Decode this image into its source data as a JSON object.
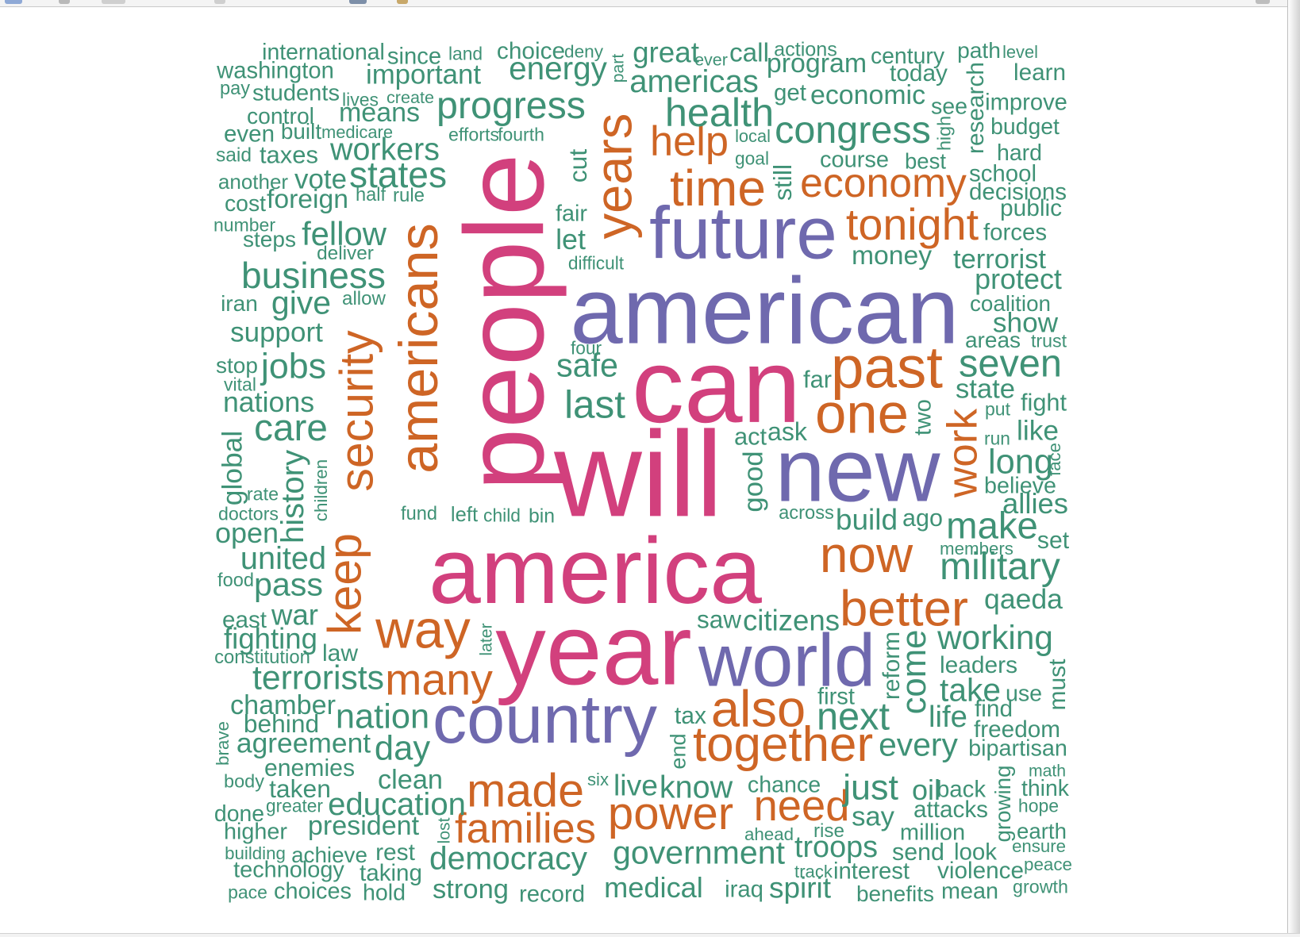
{
  "palette": {
    "pink": "#d2407d",
    "purple": "#6f69ae",
    "orange": "#ce6525",
    "green": "#3f9276"
  },
  "words": [
    {
      "text": "america",
      "c": "pink",
      "r": 0
    },
    {
      "text": "people",
      "c": "pink",
      "r": 1
    },
    {
      "text": "will",
      "c": "pink",
      "r": 0
    },
    {
      "text": "year",
      "c": "pink",
      "r": 0
    },
    {
      "text": "can",
      "c": "pink",
      "r": 0
    },
    {
      "text": "american",
      "c": "purple",
      "r": 0
    },
    {
      "text": "future",
      "c": "purple",
      "r": 0
    },
    {
      "text": "new",
      "c": "purple",
      "r": 0
    },
    {
      "text": "world",
      "c": "purple",
      "r": 0
    },
    {
      "text": "country",
      "c": "purple",
      "r": 0
    },
    {
      "text": "americans",
      "c": "orange",
      "r": 1
    },
    {
      "text": "years",
      "c": "orange",
      "r": 1
    },
    {
      "text": "security",
      "c": "orange",
      "r": 1
    },
    {
      "text": "keep",
      "c": "orange",
      "r": 1
    },
    {
      "text": "work",
      "c": "orange",
      "r": 1
    },
    {
      "text": "past",
      "c": "orange",
      "r": 0
    },
    {
      "text": "now",
      "c": "orange",
      "r": 0
    },
    {
      "text": "one",
      "c": "orange",
      "r": 0
    },
    {
      "text": "better",
      "c": "orange",
      "r": 0
    },
    {
      "text": "also",
      "c": "orange",
      "r": 0
    },
    {
      "text": "together",
      "c": "orange",
      "r": 0
    },
    {
      "text": "way",
      "c": "orange",
      "r": 0
    },
    {
      "text": "many",
      "c": "orange",
      "r": 0
    },
    {
      "text": "made",
      "c": "orange",
      "r": 0
    },
    {
      "text": "families",
      "c": "orange",
      "r": 0
    },
    {
      "text": "power",
      "c": "orange",
      "r": 0
    },
    {
      "text": "need",
      "c": "orange",
      "r": 0
    },
    {
      "text": "time",
      "c": "orange",
      "r": 0
    },
    {
      "text": "economy",
      "c": "orange",
      "r": 0
    },
    {
      "text": "tonight",
      "c": "orange",
      "r": 0
    },
    {
      "text": "help",
      "c": "orange",
      "r": 0
    },
    {
      "text": "health",
      "c": "green",
      "r": 0
    },
    {
      "text": "congress",
      "c": "green",
      "r": 0
    },
    {
      "text": "progress",
      "c": "green",
      "r": 0
    },
    {
      "text": "energy",
      "c": "green",
      "r": 0
    },
    {
      "text": "americas",
      "c": "green",
      "r": 0
    },
    {
      "text": "international",
      "c": "green",
      "r": 0
    },
    {
      "text": "washington",
      "c": "green",
      "r": 0
    },
    {
      "text": "since",
      "c": "green",
      "r": 0
    },
    {
      "text": "land",
      "c": "green",
      "r": 0
    },
    {
      "text": "choice",
      "c": "green",
      "r": 0
    },
    {
      "text": "deny",
      "c": "green",
      "r": 0
    },
    {
      "text": "part",
      "c": "green",
      "r": 1
    },
    {
      "text": "great",
      "c": "green",
      "r": 0
    },
    {
      "text": "ever",
      "c": "green",
      "r": 0
    },
    {
      "text": "call",
      "c": "green",
      "r": 0
    },
    {
      "text": "actions",
      "c": "green",
      "r": 0
    },
    {
      "text": "program",
      "c": "green",
      "r": 0
    },
    {
      "text": "century",
      "c": "green",
      "r": 0
    },
    {
      "text": "path",
      "c": "green",
      "r": 0
    },
    {
      "text": "level",
      "c": "green",
      "r": 0
    },
    {
      "text": "important",
      "c": "green",
      "r": 0
    },
    {
      "text": "today",
      "c": "green",
      "r": 0
    },
    {
      "text": "learn",
      "c": "green",
      "r": 0
    },
    {
      "text": "research",
      "c": "green",
      "r": 1
    },
    {
      "text": "pay",
      "c": "green",
      "r": 0
    },
    {
      "text": "students",
      "c": "green",
      "r": 0
    },
    {
      "text": "lives",
      "c": "green",
      "r": 0
    },
    {
      "text": "create",
      "c": "green",
      "r": 0
    },
    {
      "text": "get",
      "c": "green",
      "r": 0
    },
    {
      "text": "economic",
      "c": "green",
      "r": 0
    },
    {
      "text": "see",
      "c": "green",
      "r": 0
    },
    {
      "text": "improve",
      "c": "green",
      "r": 0
    },
    {
      "text": "control",
      "c": "green",
      "r": 0
    },
    {
      "text": "means",
      "c": "green",
      "r": 0
    },
    {
      "text": "budget",
      "c": "green",
      "r": 0
    },
    {
      "text": "high",
      "c": "green",
      "r": 1
    },
    {
      "text": "even",
      "c": "green",
      "r": 0
    },
    {
      "text": "built",
      "c": "green",
      "r": 0
    },
    {
      "text": "medicare",
      "c": "green",
      "r": 0
    },
    {
      "text": "efforts",
      "c": "green",
      "r": 0
    },
    {
      "text": "fourth",
      "c": "green",
      "r": 0
    },
    {
      "text": "local",
      "c": "green",
      "r": 0
    },
    {
      "text": "said",
      "c": "green",
      "r": 0
    },
    {
      "text": "taxes",
      "c": "green",
      "r": 0
    },
    {
      "text": "workers",
      "c": "green",
      "r": 0
    },
    {
      "text": "cut",
      "c": "green",
      "r": 1
    },
    {
      "text": "goal",
      "c": "green",
      "r": 0
    },
    {
      "text": "course",
      "c": "green",
      "r": 0
    },
    {
      "text": "best",
      "c": "green",
      "r": 0
    },
    {
      "text": "hard",
      "c": "green",
      "r": 0
    },
    {
      "text": "another",
      "c": "green",
      "r": 0
    },
    {
      "text": "vote",
      "c": "green",
      "r": 0
    },
    {
      "text": "states",
      "c": "green",
      "r": 0
    },
    {
      "text": "still",
      "c": "green",
      "r": 1
    },
    {
      "text": "school",
      "c": "green",
      "r": 0
    },
    {
      "text": "decisions",
      "c": "green",
      "r": 0
    },
    {
      "text": "cost",
      "c": "green",
      "r": 0
    },
    {
      "text": "foreign",
      "c": "green",
      "r": 0
    },
    {
      "text": "half",
      "c": "green",
      "r": 0
    },
    {
      "text": "rule",
      "c": "green",
      "r": 0
    },
    {
      "text": "public",
      "c": "green",
      "r": 0
    },
    {
      "text": "number",
      "c": "green",
      "r": 0
    },
    {
      "text": "fair",
      "c": "green",
      "r": 0
    },
    {
      "text": "steps",
      "c": "green",
      "r": 0
    },
    {
      "text": "fellow",
      "c": "green",
      "r": 0
    },
    {
      "text": "let",
      "c": "green",
      "r": 0
    },
    {
      "text": "forces",
      "c": "green",
      "r": 0
    },
    {
      "text": "deliver",
      "c": "green",
      "r": 0
    },
    {
      "text": "money",
      "c": "green",
      "r": 0
    },
    {
      "text": "terrorist",
      "c": "green",
      "r": 0
    },
    {
      "text": "difficult",
      "c": "green",
      "r": 0
    },
    {
      "text": "business",
      "c": "green",
      "r": 0
    },
    {
      "text": "protect",
      "c": "green",
      "r": 0
    },
    {
      "text": "iran",
      "c": "green",
      "r": 0
    },
    {
      "text": "give",
      "c": "green",
      "r": 0
    },
    {
      "text": "allow",
      "c": "green",
      "r": 0
    },
    {
      "text": "coalition",
      "c": "green",
      "r": 0
    },
    {
      "text": "show",
      "c": "green",
      "r": 0
    },
    {
      "text": "support",
      "c": "green",
      "r": 0
    },
    {
      "text": "areas",
      "c": "green",
      "r": 0
    },
    {
      "text": "trust",
      "c": "green",
      "r": 0
    },
    {
      "text": "four",
      "c": "green",
      "r": 0
    },
    {
      "text": "stop",
      "c": "green",
      "r": 0
    },
    {
      "text": "jobs",
      "c": "green",
      "r": 0
    },
    {
      "text": "safe",
      "c": "green",
      "r": 0
    },
    {
      "text": "seven",
      "c": "green",
      "r": 0
    },
    {
      "text": "vital",
      "c": "green",
      "r": 0
    },
    {
      "text": "far",
      "c": "green",
      "r": 0
    },
    {
      "text": "state",
      "c": "green",
      "r": 0
    },
    {
      "text": "nations",
      "c": "green",
      "r": 0
    },
    {
      "text": "last",
      "c": "green",
      "r": 0
    },
    {
      "text": "two",
      "c": "green",
      "r": 1
    },
    {
      "text": "put",
      "c": "green",
      "r": 0
    },
    {
      "text": "fight",
      "c": "green",
      "r": 0
    },
    {
      "text": "care",
      "c": "green",
      "r": 0
    },
    {
      "text": "act",
      "c": "green",
      "r": 0
    },
    {
      "text": "ask",
      "c": "green",
      "r": 0
    },
    {
      "text": "like",
      "c": "green",
      "r": 0
    },
    {
      "text": "run",
      "c": "green",
      "r": 0
    },
    {
      "text": "global",
      "c": "green",
      "r": 1
    },
    {
      "text": "history",
      "c": "green",
      "r": 1
    },
    {
      "text": "children",
      "c": "green",
      "r": 1
    },
    {
      "text": "long",
      "c": "green",
      "r": 0
    },
    {
      "text": "face",
      "c": "green",
      "r": 1
    },
    {
      "text": "good",
      "c": "green",
      "r": 1
    },
    {
      "text": "believe",
      "c": "green",
      "r": 0
    },
    {
      "text": "rate",
      "c": "green",
      "r": 0
    },
    {
      "text": "allies",
      "c": "green",
      "r": 0
    },
    {
      "text": "doctors",
      "c": "green",
      "r": 0
    },
    {
      "text": "fund",
      "c": "green",
      "r": 0
    },
    {
      "text": "left",
      "c": "green",
      "r": 0
    },
    {
      "text": "child",
      "c": "green",
      "r": 0
    },
    {
      "text": "bin",
      "c": "green",
      "r": 0
    },
    {
      "text": "across",
      "c": "green",
      "r": 0
    },
    {
      "text": "build",
      "c": "green",
      "r": 0
    },
    {
      "text": "ago",
      "c": "green",
      "r": 0
    },
    {
      "text": "open",
      "c": "green",
      "r": 0
    },
    {
      "text": "make",
      "c": "green",
      "r": 0
    },
    {
      "text": "set",
      "c": "green",
      "r": 0
    },
    {
      "text": "members",
      "c": "green",
      "r": 0
    },
    {
      "text": "united",
      "c": "green",
      "r": 0
    },
    {
      "text": "military",
      "c": "green",
      "r": 0
    },
    {
      "text": "food",
      "c": "green",
      "r": 0
    },
    {
      "text": "pass",
      "c": "green",
      "r": 0
    },
    {
      "text": "qaeda",
      "c": "green",
      "r": 0
    },
    {
      "text": "east",
      "c": "green",
      "r": 0
    },
    {
      "text": "war",
      "c": "green",
      "r": 0
    },
    {
      "text": "saw",
      "c": "green",
      "r": 0
    },
    {
      "text": "citizens",
      "c": "green",
      "r": 0
    },
    {
      "text": "fighting",
      "c": "green",
      "r": 0
    },
    {
      "text": "later",
      "c": "green",
      "r": 1
    },
    {
      "text": "working",
      "c": "green",
      "r": 0
    },
    {
      "text": "constitution",
      "c": "green",
      "r": 0
    },
    {
      "text": "law",
      "c": "green",
      "r": 0
    },
    {
      "text": "reform",
      "c": "green",
      "r": 1
    },
    {
      "text": "leaders",
      "c": "green",
      "r": 0
    },
    {
      "text": "terrorists",
      "c": "green",
      "r": 0
    },
    {
      "text": "come",
      "c": "green",
      "r": 1
    },
    {
      "text": "take",
      "c": "green",
      "r": 0
    },
    {
      "text": "use",
      "c": "green",
      "r": 0
    },
    {
      "text": "must",
      "c": "green",
      "r": 1
    },
    {
      "text": "chamber",
      "c": "green",
      "r": 0
    },
    {
      "text": "first",
      "c": "green",
      "r": 0
    },
    {
      "text": "find",
      "c": "green",
      "r": 0
    },
    {
      "text": "behind",
      "c": "green",
      "r": 0
    },
    {
      "text": "nation",
      "c": "green",
      "r": 0
    },
    {
      "text": "tax",
      "c": "green",
      "r": 0
    },
    {
      "text": "next",
      "c": "green",
      "r": 0
    },
    {
      "text": "life",
      "c": "green",
      "r": 0
    },
    {
      "text": "freedom",
      "c": "green",
      "r": 0
    },
    {
      "text": "brave",
      "c": "green",
      "r": 1
    },
    {
      "text": "agreement",
      "c": "green",
      "r": 0
    },
    {
      "text": "day",
      "c": "green",
      "r": 0
    },
    {
      "text": "end",
      "c": "green",
      "r": 1
    },
    {
      "text": "every",
      "c": "green",
      "r": 0
    },
    {
      "text": "bipartisan",
      "c": "green",
      "r": 0
    },
    {
      "text": "enemies",
      "c": "green",
      "r": 0
    },
    {
      "text": "math",
      "c": "green",
      "r": 0
    },
    {
      "text": "body",
      "c": "green",
      "r": 0
    },
    {
      "text": "taken",
      "c": "green",
      "r": 0
    },
    {
      "text": "clean",
      "c": "green",
      "r": 0
    },
    {
      "text": "six",
      "c": "green",
      "r": 0
    },
    {
      "text": "live",
      "c": "green",
      "r": 0
    },
    {
      "text": "know",
      "c": "green",
      "r": 0
    },
    {
      "text": "chance",
      "c": "green",
      "r": 0
    },
    {
      "text": "just",
      "c": "green",
      "r": 0
    },
    {
      "text": "oil",
      "c": "green",
      "r": 0
    },
    {
      "text": "back",
      "c": "green",
      "r": 0
    },
    {
      "text": "think",
      "c": "green",
      "r": 0
    },
    {
      "text": "growing",
      "c": "green",
      "r": 1
    },
    {
      "text": "greater",
      "c": "green",
      "r": 0
    },
    {
      "text": "education",
      "c": "green",
      "r": 0
    },
    {
      "text": "attacks",
      "c": "green",
      "r": 0
    },
    {
      "text": "hope",
      "c": "green",
      "r": 0
    },
    {
      "text": "done",
      "c": "green",
      "r": 0
    },
    {
      "text": "say",
      "c": "green",
      "r": 0
    },
    {
      "text": "higher",
      "c": "green",
      "r": 0
    },
    {
      "text": "president",
      "c": "green",
      "r": 0
    },
    {
      "text": "lost",
      "c": "green",
      "r": 1
    },
    {
      "text": "ahead",
      "c": "green",
      "r": 0
    },
    {
      "text": "rise",
      "c": "green",
      "r": 0
    },
    {
      "text": "million",
      "c": "green",
      "r": 0
    },
    {
      "text": "earth",
      "c": "green",
      "r": 0
    },
    {
      "text": "building",
      "c": "green",
      "r": 0
    },
    {
      "text": "achieve",
      "c": "green",
      "r": 0
    },
    {
      "text": "rest",
      "c": "green",
      "r": 0
    },
    {
      "text": "government",
      "c": "green",
      "r": 0
    },
    {
      "text": "troops",
      "c": "green",
      "r": 0
    },
    {
      "text": "send",
      "c": "green",
      "r": 0
    },
    {
      "text": "look",
      "c": "green",
      "r": 0
    },
    {
      "text": "ensure",
      "c": "green",
      "r": 0
    },
    {
      "text": "democracy",
      "c": "green",
      "r": 0
    },
    {
      "text": "technology",
      "c": "green",
      "r": 0
    },
    {
      "text": "taking",
      "c": "green",
      "r": 0
    },
    {
      "text": "track",
      "c": "green",
      "r": 0
    },
    {
      "text": "interest",
      "c": "green",
      "r": 0
    },
    {
      "text": "violence",
      "c": "green",
      "r": 0
    },
    {
      "text": "peace",
      "c": "green",
      "r": 0
    },
    {
      "text": "medical",
      "c": "green",
      "r": 0
    },
    {
      "text": "strong",
      "c": "green",
      "r": 0
    },
    {
      "text": "iraq",
      "c": "green",
      "r": 0
    },
    {
      "text": "spirit",
      "c": "green",
      "r": 0
    },
    {
      "text": "growth",
      "c": "green",
      "r": 0
    },
    {
      "text": "pace",
      "c": "green",
      "r": 0
    },
    {
      "text": "choices",
      "c": "green",
      "r": 0
    },
    {
      "text": "hold",
      "c": "green",
      "r": 0
    },
    {
      "text": "record",
      "c": "green",
      "r": 0
    },
    {
      "text": "benefits",
      "c": "green",
      "r": 0
    },
    {
      "text": "mean",
      "c": "green",
      "r": 0
    }
  ]
}
